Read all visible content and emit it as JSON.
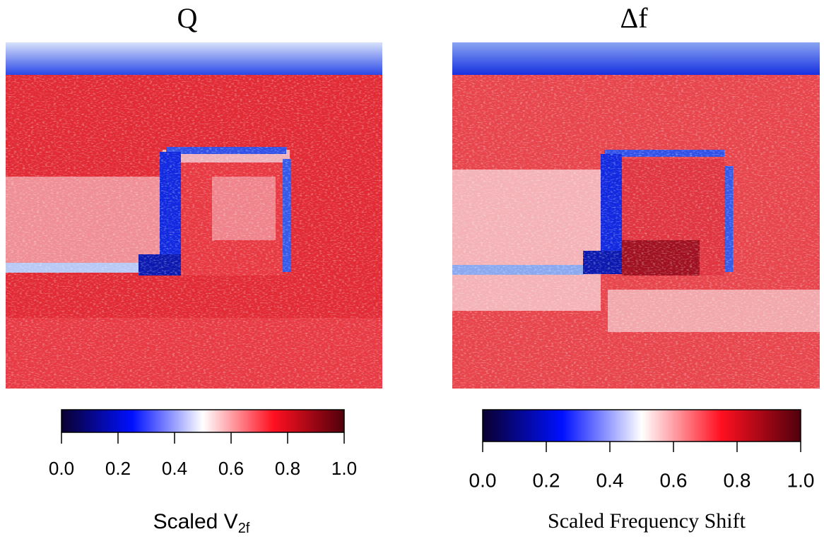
{
  "chart_data": [
    {
      "type": "heatmap",
      "title": "Q",
      "colorbar_label": {
        "text": "Scaled V",
        "subscript": "2f"
      },
      "colormap": [
        {
          "value": 0,
          "color": "#0a0030"
        },
        {
          "value": 0.25,
          "color": "#0010ff"
        },
        {
          "value": 0.5,
          "color": "#ffffff"
        },
        {
          "value": 0.75,
          "color": "#ff1020"
        },
        {
          "value": 1,
          "color": "#50000c"
        }
      ],
      "clim": [
        0,
        1
      ],
      "cticks": [
        {
          "value": 0,
          "label": "0.0"
        },
        {
          "value": 0.2,
          "label": "0.2"
        },
        {
          "value": 0.4,
          "label": "0.4"
        },
        {
          "value": 0.6,
          "label": "0.6"
        },
        {
          "value": 0.8,
          "label": "0.8"
        },
        {
          "value": 1,
          "label": "1.0"
        }
      ]
    },
    {
      "type": "heatmap",
      "title": "Δf",
      "colorbar_label": {
        "text": "Scaled Frequency Shift"
      },
      "colormap": [
        {
          "value": 0,
          "color": "#0a0030"
        },
        {
          "value": 0.25,
          "color": "#0010ff"
        },
        {
          "value": 0.5,
          "color": "#ffffff"
        },
        {
          "value": 0.75,
          "color": "#ff1020"
        },
        {
          "value": 1,
          "color": "#50000c"
        }
      ],
      "clim": [
        0,
        1
      ],
      "cticks": [
        {
          "value": 0,
          "label": "0.0"
        },
        {
          "value": 0.2,
          "label": "0.2"
        },
        {
          "value": 0.4,
          "label": "0.4"
        },
        {
          "value": 0.6,
          "label": "0.6"
        },
        {
          "value": 0.8,
          "label": "0.8"
        },
        {
          "value": 1,
          "label": "1.0"
        }
      ]
    }
  ]
}
